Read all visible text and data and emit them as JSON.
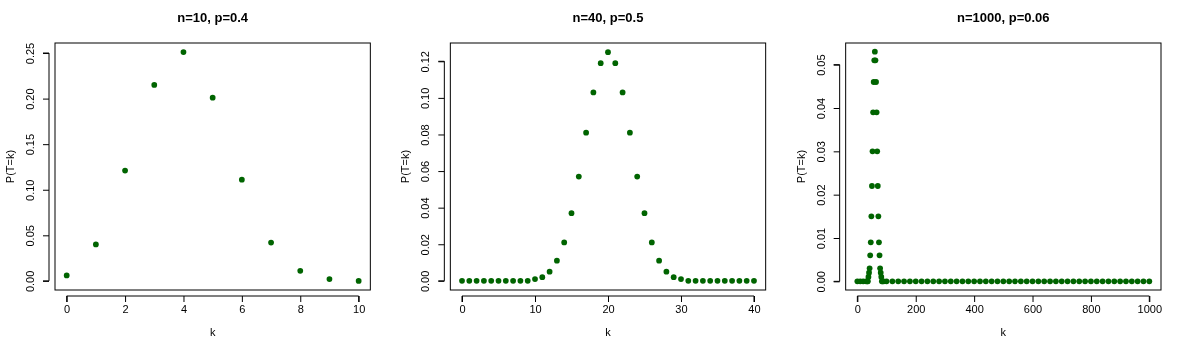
{
  "chart_data": [
    {
      "type": "scatter",
      "title": "n=10, p=0.4",
      "xlabel": "k",
      "ylabel": "P(T=k)",
      "x": [
        0,
        1,
        2,
        3,
        4,
        5,
        6,
        7,
        8,
        9,
        10
      ],
      "series": [
        {
          "color": "#006400",
          "values": [
            0.006,
            0.04,
            0.121,
            0.215,
            0.251,
            0.201,
            0.111,
            0.042,
            0.011,
            0.002,
            0.0
          ]
        }
      ],
      "xlim": [
        -0.4,
        10.4
      ],
      "xticks": [
        0,
        2,
        4,
        6,
        8,
        10
      ],
      "ylim": [
        -0.01,
        0.261
      ],
      "yticks": [
        {
          "value": 0,
          "label": "0.00"
        },
        0.05,
        {
          "value": 0.1,
          "label": "0.10"
        },
        0.15,
        {
          "value": 0.2,
          "label": "0.20"
        },
        0.25
      ],
      "marker": "circle"
    },
    {
      "type": "scatter",
      "title": "n=40, p=0.5",
      "xlabel": "k",
      "ylabel": "P(T=k)",
      "x": [
        0,
        1,
        2,
        3,
        4,
        5,
        6,
        7,
        8,
        9,
        10,
        11,
        12,
        13,
        14,
        15,
        16,
        17,
        18,
        19,
        20,
        21,
        22,
        23,
        24,
        25,
        26,
        27,
        28,
        29,
        30,
        31,
        32,
        33,
        34,
        35,
        36,
        37,
        38,
        39,
        40
      ],
      "series": [
        {
          "color": "#006400",
          "values": [
            0,
            0,
            0,
            0,
            0,
            0,
            0,
            0,
            0,
            0.0,
            0.001,
            0.002,
            0.005,
            0.011,
            0.021,
            0.037,
            0.057,
            0.081,
            0.103,
            0.119,
            0.125,
            0.119,
            0.103,
            0.081,
            0.057,
            0.037,
            0.021,
            0.011,
            0.005,
            0.002,
            0.001,
            0.0,
            0,
            0,
            0,
            0,
            0,
            0,
            0,
            0,
            0
          ]
        }
      ],
      "xlim": [
        -1.6,
        41.6
      ],
      "xticks": [
        0,
        10,
        20,
        30,
        40
      ],
      "ylim": [
        -0.005,
        0.13
      ],
      "yticks": [
        {
          "value": 0,
          "label": "0.00"
        },
        0.02,
        0.04,
        0.06,
        0.08,
        {
          "value": 0.1,
          "label": "0.10"
        },
        0.12
      ],
      "marker": "circle"
    },
    {
      "type": "scatter",
      "title": "n=1000, p=0.06",
      "xlabel": "k",
      "ylabel": "P(T=k)",
      "x": [
        0,
        10,
        20,
        30,
        34,
        36,
        38,
        40,
        42,
        44,
        46,
        48,
        50,
        52,
        54,
        56,
        58,
        60,
        62,
        64,
        66,
        68,
        70,
        72,
        74,
        76,
        78,
        80,
        82,
        84,
        86,
        90,
        100,
        120,
        140,
        160,
        180,
        200,
        220,
        240,
        260,
        280,
        300,
        320,
        340,
        360,
        380,
        400,
        420,
        440,
        460,
        480,
        500,
        520,
        540,
        560,
        580,
        600,
        620,
        640,
        660,
        680,
        700,
        720,
        740,
        760,
        780,
        800,
        820,
        840,
        860,
        880,
        900,
        920,
        940,
        960,
        980,
        1000
      ],
      "series": [
        {
          "color": "#006400",
          "values": [
            0,
            0,
            0,
            0,
            0,
            0,
            0.001,
            0.002,
            0.003,
            0.006,
            0.009,
            0.015,
            0.022,
            0.03,
            0.039,
            0.046,
            0.051,
            0.053,
            0.051,
            0.046,
            0.039,
            0.03,
            0.022,
            0.015,
            0.009,
            0.006,
            0.003,
            0.002,
            0.001,
            0,
            0,
            0,
            0,
            0,
            0,
            0,
            0,
            0,
            0,
            0,
            0,
            0,
            0,
            0,
            0,
            0,
            0,
            0,
            0,
            0,
            0,
            0,
            0,
            0,
            0,
            0,
            0,
            0,
            0,
            0,
            0,
            0,
            0,
            0,
            0,
            0,
            0,
            0,
            0,
            0,
            0,
            0,
            0,
            0,
            0,
            0,
            0,
            0
          ]
        }
      ],
      "xlim": [
        -40,
        1040
      ],
      "xticks": [
        0,
        200,
        400,
        600,
        800,
        1000
      ],
      "ylim": [
        -0.002,
        0.055
      ],
      "yticks": [
        {
          "value": 0,
          "label": "0.00"
        },
        0.01,
        0.02,
        0.03,
        0.04,
        0.05
      ],
      "marker": "circle"
    }
  ]
}
